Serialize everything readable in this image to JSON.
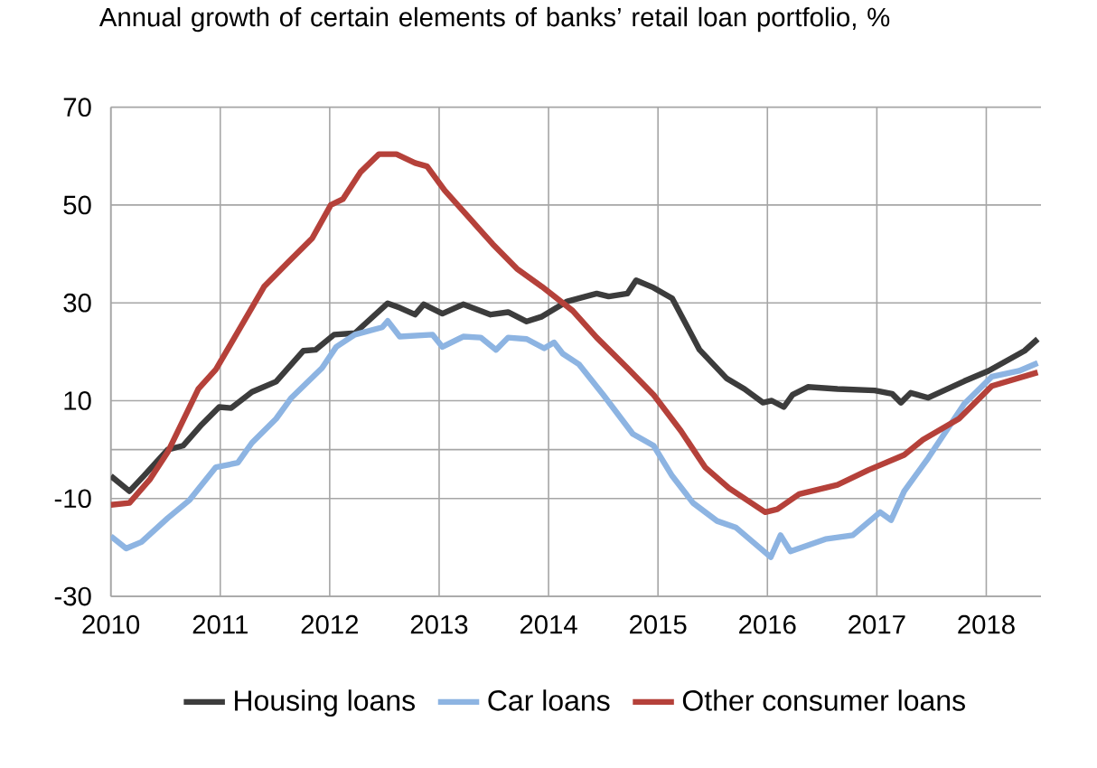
{
  "chart_data": {
    "type": "line",
    "title": "Annual growth of certain elements of banks’ retail loan portfolio, %",
    "xlim": [
      2010,
      2018.5
    ],
    "xticks": [
      2010,
      2011,
      2012,
      2013,
      2014,
      2015,
      2016,
      2017,
      2018
    ],
    "ylim": [
      -30,
      70
    ],
    "yticks": [
      -30,
      -10,
      10,
      30,
      50,
      70
    ],
    "grid": true,
    "legend": "bottom",
    "marker": "none",
    "line_style": "solid",
    "ref_lines": [
      {
        "axis": "y",
        "value": 0,
        "color": "#a6a6a6"
      }
    ],
    "series": [
      {
        "name": "Housing loans",
        "color": "#3c3c3c",
        "x": [
          2010.0,
          2010.17,
          2010.3,
          2010.52,
          2010.66,
          2010.83,
          2010.99,
          2011.1,
          2011.29,
          2011.51,
          2011.76,
          2011.87,
          2012.04,
          2012.23,
          2012.53,
          2012.64,
          2012.78,
          2012.86,
          2013.03,
          2013.22,
          2013.47,
          2013.63,
          2013.8,
          2013.94,
          2014.17,
          2014.44,
          2014.55,
          2014.72,
          2014.8,
          2014.96,
          2015.13,
          2015.38,
          2015.63,
          2015.79,
          2015.96,
          2016.04,
          2016.15,
          2016.23,
          2016.37,
          2016.64,
          2016.98,
          2017.14,
          2017.22,
          2017.31,
          2017.47,
          2017.8,
          2018.02,
          2018.35,
          2018.47
        ],
        "values": [
          -5.4,
          -8.5,
          -5.4,
          0,
          0.8,
          5.1,
          8.7,
          8.5,
          11.8,
          13.9,
          20.2,
          20.4,
          23.5,
          23.8,
          29.9,
          29.0,
          27.6,
          29.7,
          27.8,
          29.7,
          27.6,
          28.1,
          26.2,
          27.2,
          30.3,
          31.9,
          31.3,
          31.9,
          34.6,
          33.1,
          30.9,
          20.4,
          14.5,
          12.4,
          9.6,
          10.0,
          8.7,
          11.2,
          12.8,
          12.4,
          12.1,
          11.4,
          9.6,
          11.6,
          10.6,
          14.0,
          16.1,
          20.2,
          22.6
        ]
      },
      {
        "name": "Car loans",
        "color": "#8db4e2",
        "x": [
          2010.0,
          2010.14,
          2010.28,
          2010.52,
          2010.72,
          2010.96,
          2011.16,
          2011.29,
          2011.51,
          2011.65,
          2011.93,
          2012.06,
          2012.23,
          2012.48,
          2012.53,
          2012.64,
          2012.94,
          2013.03,
          2013.22,
          2013.38,
          2013.52,
          2013.63,
          2013.8,
          2013.96,
          2014.05,
          2014.13,
          2014.28,
          2014.5,
          2014.77,
          2014.96,
          2015.13,
          2015.32,
          2015.54,
          2015.71,
          2016.03,
          2016.12,
          2016.21,
          2016.53,
          2016.78,
          2017.03,
          2017.13,
          2017.25,
          2017.47,
          2017.8,
          2018.05,
          2018.3,
          2018.47
        ],
        "values": [
          -17.7,
          -20.2,
          -18.9,
          -14.0,
          -10.3,
          -3.6,
          -2.7,
          1.4,
          6.3,
          10.6,
          16.7,
          21.0,
          23.5,
          25.0,
          26.3,
          23.1,
          23.5,
          21.0,
          23.1,
          22.9,
          20.4,
          22.9,
          22.6,
          20.7,
          21.9,
          19.6,
          17.4,
          11.2,
          3.2,
          0.8,
          -5.4,
          -10.9,
          -14.6,
          -15.9,
          -22.0,
          -17.5,
          -20.8,
          -18.3,
          -17.5,
          -12.8,
          -14.4,
          -8.5,
          -1.7,
          9.4,
          14.9,
          16.1,
          17.7
        ]
      },
      {
        "name": "Other consumer loans",
        "color": "#b5413a",
        "x": [
          2010.0,
          2010.17,
          2010.36,
          2010.52,
          2010.8,
          2010.96,
          2011.13,
          2011.4,
          2011.62,
          2011.84,
          2012.01,
          2012.12,
          2012.28,
          2012.45,
          2012.61,
          2012.78,
          2012.89,
          2013.05,
          2013.27,
          2013.49,
          2013.71,
          2013.94,
          2014.22,
          2014.44,
          2014.72,
          2014.96,
          2015.21,
          2015.43,
          2015.65,
          2015.98,
          2016.09,
          2016.29,
          2016.64,
          2016.92,
          2017.25,
          2017.42,
          2017.75,
          2018.05,
          2018.47
        ],
        "values": [
          -11.3,
          -10.9,
          -6.0,
          -0.5,
          12.4,
          16.4,
          22.9,
          33.3,
          38.3,
          43.2,
          50.0,
          51.2,
          56.7,
          60.4,
          60.4,
          58.6,
          57.9,
          53.0,
          47.5,
          42.0,
          37.0,
          33.3,
          28.4,
          22.9,
          16.7,
          11.2,
          3.8,
          -3.6,
          -7.9,
          -12.8,
          -12.2,
          -9.1,
          -7.2,
          -4.2,
          -1.1,
          2.0,
          6.3,
          13.0,
          15.8
        ]
      }
    ]
  }
}
